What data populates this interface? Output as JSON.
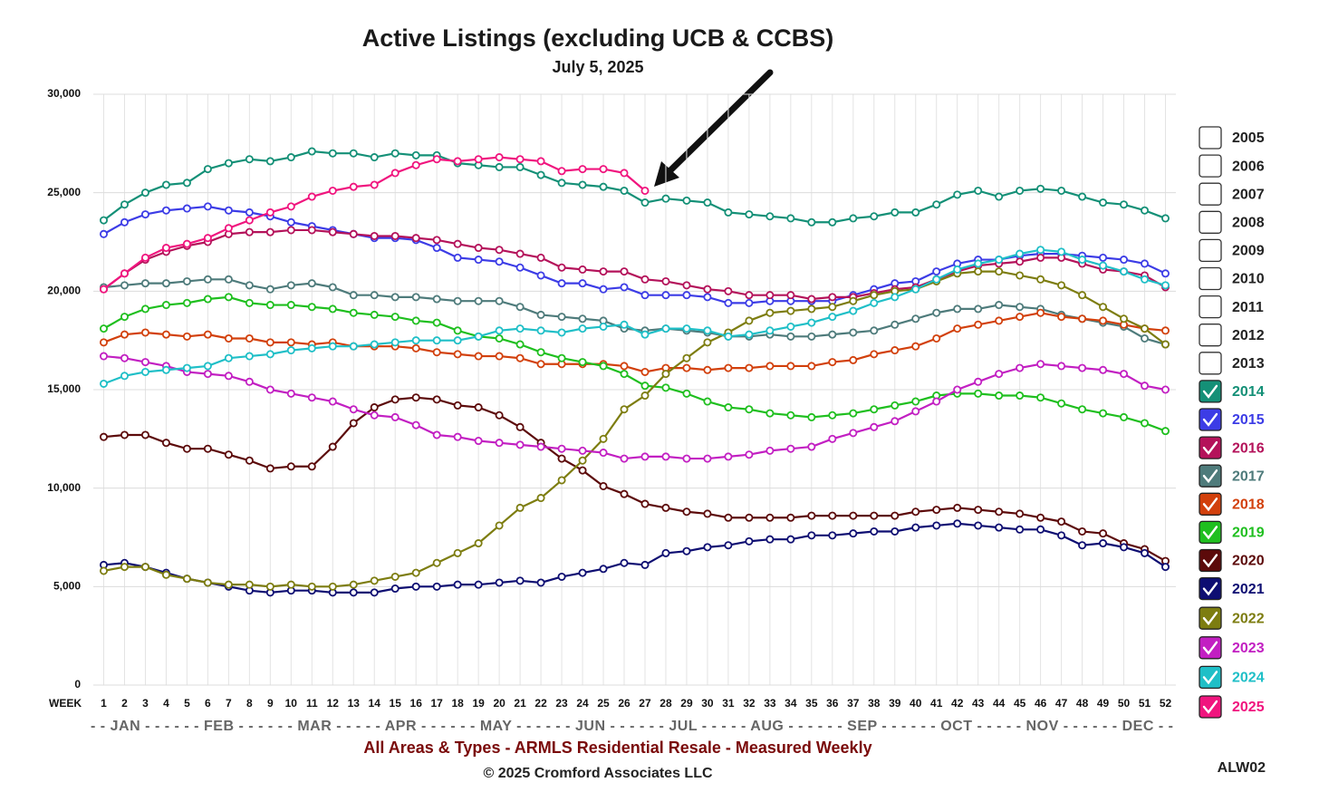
{
  "chart_data": {
    "type": "line",
    "title": "Active Listings (excluding UCB & CCBS)",
    "subtitle": "July 5, 2025",
    "x_label": "WEEK",
    "months": "- - JAN - - - - - - FEB - - - - - - MAR - - - - - APR - - - - - - MAY - - - - - - JUN - - - - - - JUL - - - - - AUG - - - - - - SEP - - - - - - OCT - - - - - NOV - - - - - - DEC - -",
    "footer": "All Areas & Types - ARMLS Residential Resale - Measured Weekly",
    "copyright": "© 2025 Cromford Associates LLC",
    "code": "ALW02",
    "ylim": [
      0,
      30000
    ],
    "yticks": [
      0,
      {
        "value": 5000,
        "label": "5,000"
      },
      {
        "value": 10000,
        "label": "10,000"
      },
      {
        "value": 15000,
        "label": "15,000"
      },
      {
        "value": 20000,
        "label": "20,000"
      },
      {
        "value": 25000,
        "label": "25,000"
      },
      {
        "value": 30000,
        "label": "30,000"
      }
    ],
    "xlim": [
      0.5,
      52.5
    ],
    "x": [
      1,
      2,
      3,
      4,
      5,
      6,
      7,
      8,
      9,
      10,
      11,
      12,
      13,
      14,
      15,
      16,
      17,
      18,
      19,
      20,
      21,
      22,
      23,
      24,
      25,
      26,
      27,
      28,
      29,
      30,
      31,
      32,
      33,
      34,
      35,
      36,
      37,
      38,
      39,
      40,
      41,
      42,
      43,
      44,
      45,
      46,
      47,
      48,
      49,
      50,
      51,
      52
    ],
    "grid": true,
    "legend_position": "right",
    "unchecked_legend": [
      "2005",
      "2006",
      "2007",
      "2008",
      "2009",
      "2010",
      "2011",
      "2012",
      "2013"
    ],
    "series": [
      {
        "name": "2014",
        "color": "#149077",
        "values": [
          23600,
          24400,
          25000,
          25400,
          25500,
          26200,
          26500,
          26700,
          26600,
          26800,
          27100,
          27000,
          27000,
          26800,
          27000,
          26900,
          26900,
          26500,
          26400,
          26300,
          26300,
          25900,
          25500,
          25400,
          25300,
          25100,
          24500,
          24700,
          24600,
          24500,
          24000,
          23900,
          23800,
          23700,
          23500,
          23500,
          23700,
          23800,
          24000,
          24000,
          24400,
          24900,
          25100,
          24800,
          25100,
          25200,
          25100,
          24800,
          24500,
          24400,
          24100,
          23700
        ]
      },
      {
        "name": "2015",
        "color": "#3c3ce6",
        "values": [
          22900,
          23500,
          23900,
          24100,
          24200,
          24300,
          24100,
          24000,
          23800,
          23500,
          23300,
          23100,
          22900,
          22700,
          22700,
          22600,
          22200,
          21700,
          21600,
          21500,
          21200,
          20800,
          20400,
          20400,
          20100,
          20200,
          19800,
          19800,
          19800,
          19700,
          19400,
          19400,
          19500,
          19500,
          19500,
          19500,
          19800,
          20100,
          20400,
          20500,
          21000,
          21400,
          21600,
          21600,
          21800,
          21900,
          21900,
          21800,
          21700,
          21600,
          21400,
          20900
        ]
      },
      {
        "name": "2016",
        "color": "#b4125a",
        "values": [
          20100,
          20900,
          21600,
          22000,
          22300,
          22500,
          22900,
          23000,
          23000,
          23100,
          23100,
          23000,
          22900,
          22800,
          22800,
          22700,
          22600,
          22400,
          22200,
          22100,
          21900,
          21700,
          21200,
          21100,
          21000,
          21000,
          20600,
          20500,
          20300,
          20100,
          20000,
          19800,
          19800,
          19800,
          19600,
          19700,
          19700,
          19900,
          20100,
          20200,
          20600,
          21000,
          21300,
          21400,
          21500,
          21700,
          21700,
          21400,
          21100,
          21000,
          20800,
          20200
        ]
      },
      {
        "name": "2017",
        "color": "#4e7b7b",
        "values": [
          20200,
          20300,
          20400,
          20400,
          20500,
          20600,
          20600,
          20300,
          20100,
          20300,
          20400,
          20200,
          19800,
          19800,
          19700,
          19700,
          19600,
          19500,
          19500,
          19500,
          19200,
          18800,
          18700,
          18600,
          18500,
          18100,
          18000,
          18100,
          18000,
          17900,
          17700,
          17700,
          17800,
          17700,
          17700,
          17800,
          17900,
          18000,
          18300,
          18600,
          18900,
          19100,
          19100,
          19300,
          19200,
          19100,
          18800,
          18600,
          18400,
          18200,
          17600,
          17300
        ]
      },
      {
        "name": "2018",
        "color": "#d2400c",
        "values": [
          17400,
          17800,
          17900,
          17800,
          17700,
          17800,
          17600,
          17600,
          17400,
          17400,
          17300,
          17400,
          17200,
          17200,
          17200,
          17100,
          16900,
          16800,
          16700,
          16700,
          16600,
          16300,
          16300,
          16300,
          16300,
          16200,
          15900,
          16100,
          16100,
          16000,
          16100,
          16100,
          16200,
          16200,
          16200,
          16400,
          16500,
          16800,
          17000,
          17200,
          17600,
          18100,
          18300,
          18500,
          18700,
          18900,
          18700,
          18600,
          18500,
          18300,
          18100,
          18000
        ]
      },
      {
        "name": "2019",
        "color": "#1fbf1f",
        "values": [
          18100,
          18700,
          19100,
          19300,
          19400,
          19600,
          19700,
          19400,
          19300,
          19300,
          19200,
          19100,
          18900,
          18800,
          18700,
          18500,
          18400,
          18000,
          17700,
          17600,
          17300,
          16900,
          16600,
          16400,
          16200,
          15800,
          15200,
          15100,
          14800,
          14400,
          14100,
          14000,
          13800,
          13700,
          13600,
          13700,
          13800,
          14000,
          14200,
          14400,
          14700,
          14800,
          14800,
          14700,
          14700,
          14600,
          14300,
          14000,
          13800,
          13600,
          13300,
          12900
        ]
      },
      {
        "name": "2020",
        "color": "#5c0a0a",
        "values": [
          12600,
          12700,
          12700,
          12300,
          12000,
          12000,
          11700,
          11400,
          11000,
          11100,
          11100,
          12100,
          13300,
          14100,
          14500,
          14600,
          14500,
          14200,
          14100,
          13700,
          13100,
          12300,
          11500,
          10900,
          10100,
          9700,
          9200,
          9000,
          8800,
          8700,
          8500,
          8500,
          8500,
          8500,
          8600,
          8600,
          8600,
          8600,
          8600,
          8800,
          8900,
          9000,
          8900,
          8800,
          8700,
          8500,
          8300,
          7800,
          7700,
          7200,
          6900,
          6300
        ]
      },
      {
        "name": "2021",
        "color": "#0e0e72",
        "values": [
          6100,
          6200,
          6000,
          5700,
          5400,
          5200,
          5000,
          4800,
          4700,
          4800,
          4800,
          4700,
          4700,
          4700,
          4900,
          5000,
          5000,
          5100,
          5100,
          5200,
          5300,
          5200,
          5500,
          5700,
          5900,
          6200,
          6100,
          6700,
          6800,
          7000,
          7100,
          7300,
          7400,
          7400,
          7600,
          7600,
          7700,
          7800,
          7800,
          8000,
          8100,
          8200,
          8100,
          8000,
          7900,
          7900,
          7600,
          7100,
          7200,
          7000,
          6700,
          6000
        ]
      },
      {
        "name": "2022",
        "color": "#7d7d10",
        "values": [
          5800,
          6000,
          6000,
          5600,
          5400,
          5200,
          5100,
          5100,
          5000,
          5100,
          5000,
          5000,
          5100,
          5300,
          5500,
          5700,
          6200,
          6700,
          7200,
          8100,
          9000,
          9500,
          10400,
          11400,
          12500,
          14000,
          14700,
          15800,
          16600,
          17400,
          17900,
          18500,
          18900,
          19000,
          19100,
          19200,
          19500,
          19800,
          20000,
          20100,
          20500,
          20900,
          21000,
          21000,
          20800,
          20600,
          20300,
          19800,
          19200,
          18600,
          18100,
          17300
        ]
      },
      {
        "name": "2023",
        "color": "#c21fc2",
        "values": [
          16700,
          16600,
          16400,
          16200,
          15900,
          15800,
          15700,
          15400,
          15000,
          14800,
          14600,
          14400,
          14000,
          13700,
          13600,
          13200,
          12700,
          12600,
          12400,
          12300,
          12200,
          12100,
          12000,
          11900,
          11800,
          11500,
          11600,
          11600,
          11500,
          11500,
          11600,
          11700,
          11900,
          12000,
          12100,
          12500,
          12800,
          13100,
          13400,
          13900,
          14400,
          15000,
          15400,
          15800,
          16100,
          16300,
          16200,
          16100,
          16000,
          15800,
          15200,
          15000
        ]
      },
      {
        "name": "2024",
        "color": "#1fbfc7",
        "values": [
          15300,
          15700,
          15900,
          16000,
          16100,
          16200,
          16600,
          16700,
          16800,
          17000,
          17100,
          17200,
          17200,
          17300,
          17400,
          17500,
          17500,
          17500,
          17700,
          18000,
          18100,
          18000,
          17900,
          18100,
          18200,
          18300,
          17800,
          18100,
          18100,
          18000,
          17700,
          17800,
          18000,
          18200,
          18400,
          18700,
          19000,
          19400,
          19700,
          20100,
          20600,
          21100,
          21400,
          21600,
          21900,
          22100,
          22000,
          21600,
          21300,
          21000,
          20600,
          20300
        ]
      },
      {
        "name": "2025",
        "color": "#f0157e",
        "values": [
          20100,
          20900,
          21700,
          22200,
          22400,
          22700,
          23200,
          23600,
          24000,
          24300,
          24800,
          25100,
          25300,
          25400,
          26000,
          26400,
          26700,
          26600,
          26700,
          26800,
          26700,
          26600,
          26100,
          26200,
          26200,
          26000,
          25100,
          null,
          null,
          null,
          null,
          null,
          null,
          null,
          null,
          null,
          null,
          null,
          null,
          null,
          null,
          null,
          null,
          null,
          null,
          null,
          null,
          null,
          null,
          null,
          null,
          null
        ]
      }
    ]
  }
}
